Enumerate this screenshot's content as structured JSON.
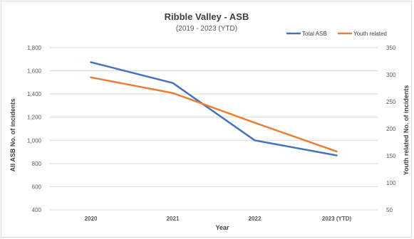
{
  "chart_data": {
    "type": "line",
    "title": "Ribble Valley - ASB",
    "subtitle": "(2019 - 2023 (YTD)",
    "xlabel": "Year",
    "ylabel_left": "All ASB No. of incidents",
    "ylabel_right": "Youth related No. of incidents",
    "categories": [
      "2020",
      "2021",
      "2022",
      "2023 (YTD)"
    ],
    "y_left": {
      "min": 400,
      "max": 1800,
      "ticks": [
        "400",
        "600",
        "800",
        "1,000",
        "1,200",
        "1,400",
        "1,600",
        "1,800"
      ],
      "tick_values": [
        400,
        600,
        800,
        1000,
        1200,
        1400,
        1600,
        1800
      ]
    },
    "y_right": {
      "min": 50,
      "max": 350,
      "ticks": [
        "50",
        "100",
        "150",
        "200",
        "250",
        "300",
        "350"
      ],
      "tick_values": [
        50,
        100,
        150,
        200,
        250,
        300,
        350
      ]
    },
    "grid": true,
    "legend_position": "top-right",
    "series": [
      {
        "name": "Total ASB",
        "axis": "left",
        "color": "#4472c4",
        "values": [
          1675,
          1495,
          1000,
          870
        ]
      },
      {
        "name": "Youth related",
        "axis": "right",
        "color": "#ed7d31",
        "values": [
          295,
          266,
          211,
          158
        ]
      }
    ]
  }
}
